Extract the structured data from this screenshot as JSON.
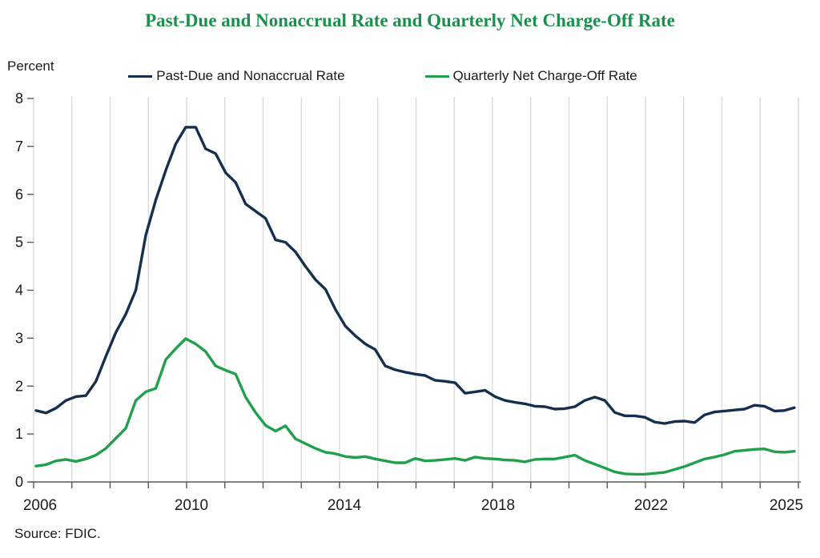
{
  "title": "Past-Due and Nonaccrual Rate and Quarterly Net Charge-Off Rate",
  "y_axis_unit_label": "Percent",
  "source_note": "Source: FDIC.",
  "colors": {
    "title_green": "#17914b",
    "navy_line": "#15304e",
    "green_line": "#21a04c",
    "gridline": "#d9d9d9",
    "axis": "#595959",
    "text": "#1a1a1a"
  },
  "legend": {
    "items": [
      {
        "label": "Past-Due and Nonaccrual Rate",
        "color": "#15304e"
      },
      {
        "label": "Quarterly Net Charge-Off Rate",
        "color": "#21a04c"
      }
    ]
  },
  "chart_data": {
    "type": "line",
    "title": "Past-Due and Nonaccrual Rate and Quarterly Net Charge-Off Rate",
    "xlabel": "",
    "ylabel": "Percent",
    "ylim": [
      0,
      8
    ],
    "y_ticks": [
      0,
      1,
      2,
      3,
      4,
      5,
      6,
      7,
      8
    ],
    "x_tick_labels": [
      "2006",
      "2010",
      "2014",
      "2018",
      "2022",
      "2025"
    ],
    "grid": "vertical gridlines at each year, 2006 through 2026",
    "legend_position": "top center",
    "x": [
      "2006 Q1",
      "2006 Q2",
      "2006 Q3",
      "2006 Q4",
      "2007 Q1",
      "2007 Q2",
      "2007 Q3",
      "2007 Q4",
      "2008 Q1",
      "2008 Q2",
      "2008 Q3",
      "2008 Q4",
      "2009 Q1",
      "2009 Q2",
      "2009 Q3",
      "2009 Q4",
      "2010 Q1",
      "2010 Q2",
      "2010 Q3",
      "2010 Q4",
      "2011 Q1",
      "2011 Q2",
      "2011 Q3",
      "2011 Q4",
      "2012 Q1",
      "2012 Q2",
      "2012 Q3",
      "2012 Q4",
      "2013 Q1",
      "2013 Q2",
      "2013 Q3",
      "2013 Q4",
      "2014 Q1",
      "2014 Q2",
      "2014 Q3",
      "2014 Q4",
      "2015 Q1",
      "2015 Q2",
      "2015 Q3",
      "2015 Q4",
      "2016 Q1",
      "2016 Q2",
      "2016 Q3",
      "2016 Q4",
      "2017 Q1",
      "2017 Q2",
      "2017 Q3",
      "2017 Q4",
      "2018 Q1",
      "2018 Q2",
      "2018 Q3",
      "2018 Q4",
      "2019 Q1",
      "2019 Q2",
      "2019 Q3",
      "2019 Q4",
      "2020 Q1",
      "2020 Q2",
      "2020 Q3",
      "2020 Q4",
      "2021 Q1",
      "2021 Q2",
      "2021 Q3",
      "2021 Q4",
      "2022 Q1",
      "2022 Q2",
      "2022 Q3",
      "2022 Q4",
      "2023 Q1",
      "2023 Q2",
      "2023 Q3",
      "2023 Q4",
      "2024 Q1",
      "2024 Q2",
      "2024 Q3",
      "2024 Q4",
      "2025 Q1"
    ],
    "series": [
      {
        "name": "Past-Due and Nonaccrual Rate",
        "color": "#15304e",
        "values": [
          1.49,
          1.44,
          1.54,
          1.7,
          1.78,
          1.8,
          2.1,
          2.62,
          3.12,
          3.5,
          4.0,
          5.15,
          5.88,
          6.5,
          7.05,
          7.4,
          7.4,
          6.95,
          6.85,
          6.45,
          6.25,
          5.8,
          5.65,
          5.5,
          5.05,
          5.0,
          4.8,
          4.5,
          4.22,
          4.02,
          3.6,
          3.25,
          3.05,
          2.88,
          2.76,
          2.42,
          2.34,
          2.29,
          2.25,
          2.22,
          2.12,
          2.1,
          2.07,
          1.85,
          1.88,
          1.91,
          1.78,
          1.7,
          1.66,
          1.63,
          1.58,
          1.57,
          1.52,
          1.53,
          1.57,
          1.7,
          1.77,
          1.7,
          1.45,
          1.38,
          1.38,
          1.35,
          1.25,
          1.22,
          1.26,
          1.27,
          1.24,
          1.4,
          1.46,
          1.48,
          1.5,
          1.52,
          1.6,
          1.58,
          1.48,
          1.49,
          1.55
        ]
      },
      {
        "name": "Quarterly Net Charge-Off Rate",
        "color": "#21a04c",
        "values": [
          0.33,
          0.36,
          0.44,
          0.47,
          0.43,
          0.48,
          0.56,
          0.7,
          0.91,
          1.12,
          1.7,
          1.88,
          1.95,
          2.55,
          2.78,
          2.99,
          2.88,
          2.72,
          2.42,
          2.33,
          2.25,
          1.77,
          1.45,
          1.18,
          1.06,
          1.17,
          0.9,
          0.8,
          0.7,
          0.62,
          0.59,
          0.53,
          0.51,
          0.53,
          0.48,
          0.44,
          0.4,
          0.4,
          0.49,
          0.44,
          0.45,
          0.47,
          0.49,
          0.45,
          0.52,
          0.49,
          0.48,
          0.46,
          0.45,
          0.42,
          0.47,
          0.48,
          0.48,
          0.52,
          0.56,
          0.45,
          0.37,
          0.29,
          0.21,
          0.17,
          0.16,
          0.16,
          0.18,
          0.2,
          0.26,
          0.32,
          0.4,
          0.48,
          0.52,
          0.57,
          0.64,
          0.66,
          0.68,
          0.69,
          0.63,
          0.62,
          0.64
        ]
      }
    ]
  }
}
